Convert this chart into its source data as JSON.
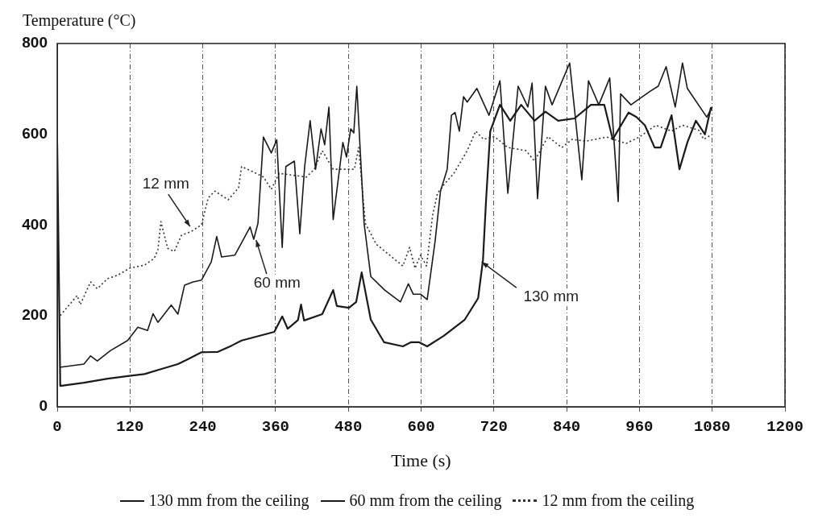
{
  "chart_data": {
    "type": "line",
    "xlabel": "Time (s)",
    "ylabel": "Temperature (°C)",
    "xlim": [
      0,
      1200
    ],
    "xticks": [
      0,
      120,
      240,
      360,
      480,
      600,
      720,
      840,
      960,
      1080,
      1200
    ],
    "ylim": [
      0,
      800
    ],
    "yticks": [
      0,
      200,
      400,
      600,
      800
    ],
    "grid": "x",
    "legend": "bottom",
    "marker": "none",
    "series": [
      {
        "name": "130 mm from the ceiling",
        "color": "#1a1a1a",
        "line_style": "solid",
        "x": [
          0,
          5,
          44,
          83,
          119,
          144,
          171,
          199,
          216,
          238,
          265,
          288,
          304,
          358,
          371,
          380,
          397,
          402,
          407,
          437,
          455,
          461,
          481,
          493,
          502,
          517,
          539,
          570,
          583,
          597,
          610,
          637,
          672,
          694,
          702,
          707,
          714,
          730,
          747,
          765,
          787,
          805,
          826,
          853,
          880,
          902,
          916,
          942,
          955,
          969,
          985,
          995,
          1013,
          1026,
          1039,
          1053,
          1068,
          1078
        ],
        "values": [
          580,
          46,
          53,
          62,
          68,
          72,
          83,
          94,
          105,
          120,
          121,
          135,
          146,
          165,
          199,
          172,
          191,
          225,
          190,
          204,
          257,
          222,
          218,
          231,
          296,
          192,
          142,
          133,
          142,
          142,
          133,
          156,
          192,
          239,
          323,
          452,
          607,
          665,
          630,
          665,
          630,
          650,
          630,
          635,
          665,
          665,
          589,
          648,
          638,
          620,
          571,
          571,
          642,
          523,
          582,
          630,
          600,
          660
        ]
      },
      {
        "name": "60 mm from the ceiling",
        "color": "#1a1a1a",
        "line_style": "solid",
        "x": [
          4,
          44,
          55,
          66,
          88,
          116,
          133,
          149,
          158,
          166,
          188,
          199,
          210,
          224,
          238,
          254,
          263,
          271,
          293,
          318,
          324,
          331,
          340,
          353,
          362,
          371,
          377,
          391,
          400,
          408,
          417,
          426,
          435,
          441,
          448,
          455,
          471,
          477,
          484,
          489,
          494,
          506,
          517,
          540,
          566,
          579,
          587,
          599,
          610,
          623,
          632,
          643,
          650,
          656,
          663,
          670,
          676,
          692,
          712,
          730,
          743,
          760,
          776,
          783,
          792,
          805,
          816,
          845,
          865,
          876,
          893,
          911,
          925,
          929,
          946,
          978,
          991,
          1004,
          1019,
          1031,
          1039,
          1071,
          1080
        ],
        "values": [
          87,
          94,
          112,
          101,
          124,
          146,
          175,
          168,
          205,
          186,
          224,
          204,
          268,
          275,
          279,
          319,
          375,
          330,
          334,
          396,
          369,
          404,
          594,
          559,
          588,
          351,
          529,
          541,
          381,
          529,
          630,
          523,
          612,
          577,
          660,
          412,
          582,
          550,
          612,
          603,
          706,
          404,
          287,
          257,
          231,
          271,
          248,
          248,
          236,
          364,
          475,
          523,
          642,
          648,
          607,
          683,
          671,
          701,
          642,
          718,
          470,
          706,
          660,
          713,
          458,
          706,
          665,
          757,
          500,
          718,
          665,
          724,
          452,
          689,
          665,
          695,
          706,
          749,
          660,
          757,
          701,
          638,
          660
        ]
      },
      {
        "name": "12 mm from the ceiling",
        "color": "#333333",
        "line_style": "dotted",
        "x": [
          5,
          33,
          38,
          55,
          66,
          83,
          100,
          119,
          144,
          160,
          166,
          171,
          182,
          193,
          205,
          221,
          238,
          249,
          260,
          282,
          299,
          304,
          322,
          340,
          353,
          366,
          411,
          424,
          437,
          455,
          473,
          490,
          497,
          508,
          526,
          548,
          570,
          581,
          590,
          599,
          609,
          619,
          627,
          637,
          654,
          676,
          690,
          703,
          721,
          743,
          773,
          787,
          809,
          832,
          849,
          872,
          906,
          938,
          960,
          987,
          1013,
          1031,
          1058,
          1066,
          1080
        ],
        "values": [
          201,
          245,
          225,
          275,
          260,
          282,
          290,
          305,
          312,
          327,
          346,
          408,
          349,
          342,
          378,
          386,
          401,
          460,
          475,
          456,
          482,
          529,
          518,
          506,
          479,
          514,
          506,
          523,
          564,
          523,
          523,
          523,
          571,
          404,
          358,
          334,
          310,
          351,
          305,
          334,
          310,
          422,
          470,
          488,
          514,
          564,
          607,
          589,
          595,
          571,
          564,
          541,
          595,
          571,
          589,
          585,
          594,
          580,
          594,
          620,
          607,
          620,
          609,
          589,
          600
        ]
      }
    ],
    "annotations": [
      {
        "text": "12 mm",
        "x": 219,
        "y": 397
      },
      {
        "text": "60 mm",
        "x": 328,
        "y": 367
      },
      {
        "text": "130 mm",
        "x": 700,
        "y": 319
      }
    ]
  }
}
